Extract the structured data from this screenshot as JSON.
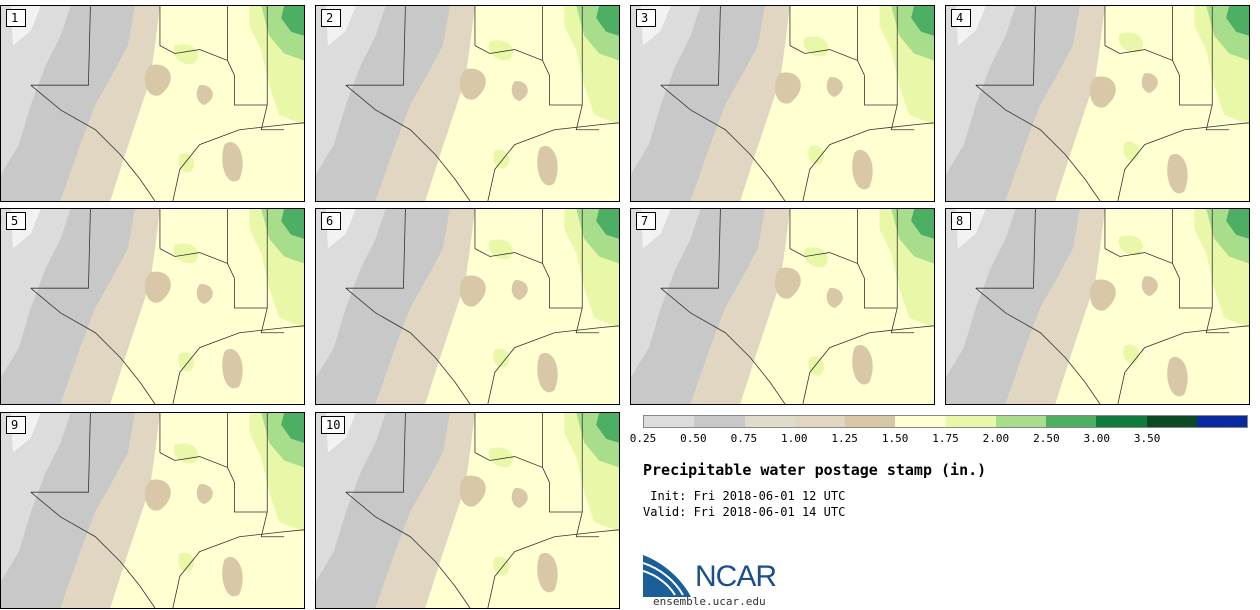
{
  "panels": [
    {
      "label": "1",
      "variant": 0
    },
    {
      "label": "2",
      "variant": 1
    },
    {
      "label": "3",
      "variant": 2
    },
    {
      "label": "4",
      "variant": 3
    },
    {
      "label": "5",
      "variant": 1
    },
    {
      "label": "6",
      "variant": 2
    },
    {
      "label": "7",
      "variant": 0
    },
    {
      "label": "8",
      "variant": 3
    },
    {
      "label": "9",
      "variant": 2
    },
    {
      "label": "10",
      "variant": 1
    }
  ],
  "legend": {
    "thresholds": [
      "0.25",
      "0.50",
      "0.75",
      "1.00",
      "1.25",
      "1.50",
      "1.75",
      "2.00",
      "2.50",
      "3.00",
      "3.50"
    ],
    "colors": [
      "#dcdcdc",
      "#c8c8c8",
      "#e0dccc",
      "#e0d6c2",
      "#d9c8a8",
      "#ffffd2",
      "#e9f8a8",
      "#a8dd8c",
      "#4caf63",
      "#117a3d",
      "#0b4a24",
      "#0a2aa0"
    ]
  },
  "title": "Precipitable water postage stamp (in.)",
  "init_line": " Init: Fri 2018-06-01 12 UTC",
  "valid_line": "Valid: Fri 2018-06-01 14 UTC",
  "logo_text": "NCAR",
  "site": "ensemble.ucar.edu"
}
